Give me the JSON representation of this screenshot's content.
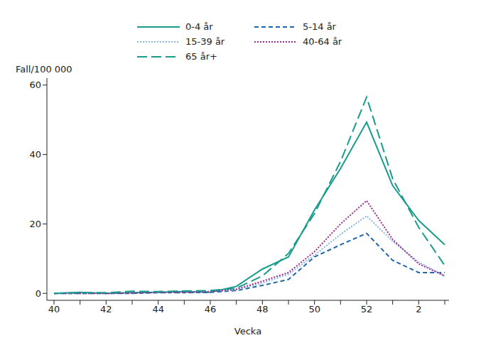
{
  "chart_data": {
    "type": "line",
    "x_label": "Vecka",
    "y_label": "Fall/100 000",
    "categories": [
      "40",
      null,
      "42",
      null,
      "44",
      null,
      "46",
      null,
      "48",
      null,
      "50",
      null,
      "52",
      null,
      "2",
      null
    ],
    "ylim": [
      -2,
      62
    ],
    "yticks": [
      0,
      20,
      40,
      60
    ],
    "grid": false,
    "legend": "top",
    "series": [
      {
        "name": "0-4 år",
        "color": "#1a9c8c",
        "line_style": "solid",
        "values": [
          0,
          0.3,
          0,
          0.2,
          0.3,
          0.5,
          0.3,
          2,
          7,
          10.5,
          24,
          36,
          49.3,
          31,
          21,
          14
        ]
      },
      {
        "name": "5-14 år",
        "color": "#2066a8",
        "line_style": "dashed",
        "values": [
          0,
          0,
          0,
          0,
          0.2,
          0.2,
          0.3,
          0.8,
          2.3,
          4,
          10.5,
          14,
          17.3,
          9.5,
          6,
          6
        ]
      },
      {
        "name": "15-39 år",
        "color": "#8ab4e0",
        "line_style": "dotted",
        "values": [
          0,
          0,
          0,
          0.1,
          0.3,
          0.3,
          0.5,
          1,
          3,
          5.5,
          11,
          17,
          22.3,
          15,
          9,
          5
        ]
      },
      {
        "name": "40-64 år",
        "color": "#9c2a8c",
        "line_style": "dotted",
        "values": [
          0,
          0,
          0,
          0.1,
          0.3,
          0.3,
          0.5,
          1.2,
          3.5,
          6,
          12,
          20,
          26.7,
          15.5,
          8.5,
          5
        ]
      },
      {
        "name": "65 år+",
        "color": "#1a9c8c",
        "line_style": "longdash",
        "values": [
          0,
          0.2,
          0.2,
          0.6,
          0.5,
          0.7,
          0.8,
          1.5,
          5,
          11.5,
          23,
          38,
          56.5,
          33,
          19,
          8
        ]
      }
    ]
  }
}
